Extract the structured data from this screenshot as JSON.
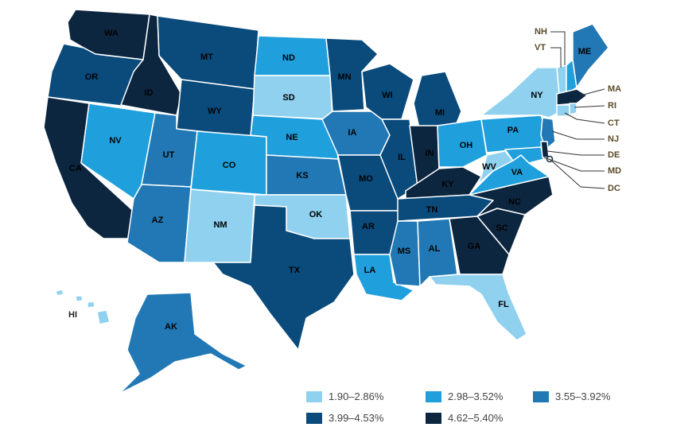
{
  "colors": {
    "c1": "#8fd1ee",
    "c2": "#1fa0dc",
    "c3": "#2178b4",
    "c4": "#0a4b7c",
    "c5": "#0d2640"
  },
  "legend": [
    {
      "label": "1.90–2.86%",
      "color": "#8fd1ee"
    },
    {
      "label": "2.98–3.52%",
      "color": "#1fa0dc"
    },
    {
      "label": "3.55–3.92%",
      "color": "#2178b4"
    },
    {
      "label": "3.99–4.53%",
      "color": "#0a4b7c"
    },
    {
      "label": "4.62–5.40%",
      "color": "#0d2640"
    }
  ],
  "states": [
    {
      "abbr": "WA",
      "bin": 5
    },
    {
      "abbr": "OR",
      "bin": 4
    },
    {
      "abbr": "CA",
      "bin": 5
    },
    {
      "abbr": "ID",
      "bin": 5
    },
    {
      "abbr": "NV",
      "bin": 2
    },
    {
      "abbr": "MT",
      "bin": 4
    },
    {
      "abbr": "WY",
      "bin": 4
    },
    {
      "abbr": "UT",
      "bin": 3
    },
    {
      "abbr": "AZ",
      "bin": 3
    },
    {
      "abbr": "CO",
      "bin": 2
    },
    {
      "abbr": "NM",
      "bin": 1
    },
    {
      "abbr": "ND",
      "bin": 2
    },
    {
      "abbr": "SD",
      "bin": 1
    },
    {
      "abbr": "NE",
      "bin": 2
    },
    {
      "abbr": "KS",
      "bin": 3
    },
    {
      "abbr": "OK",
      "bin": 1
    },
    {
      "abbr": "TX",
      "bin": 4
    },
    {
      "abbr": "MN",
      "bin": 4
    },
    {
      "abbr": "IA",
      "bin": 3
    },
    {
      "abbr": "MO",
      "bin": 4
    },
    {
      "abbr": "AR",
      "bin": 4
    },
    {
      "abbr": "LA",
      "bin": 2
    },
    {
      "abbr": "WI",
      "bin": 4
    },
    {
      "abbr": "IL",
      "bin": 4
    },
    {
      "abbr": "MI",
      "bin": 4
    },
    {
      "abbr": "IN",
      "bin": 5
    },
    {
      "abbr": "OH",
      "bin": 2
    },
    {
      "abbr": "KY",
      "bin": 5
    },
    {
      "abbr": "TN",
      "bin": 4
    },
    {
      "abbr": "MS",
      "bin": 3
    },
    {
      "abbr": "AL",
      "bin": 3
    },
    {
      "abbr": "GA",
      "bin": 5
    },
    {
      "abbr": "FL",
      "bin": 1
    },
    {
      "abbr": "SC",
      "bin": 5
    },
    {
      "abbr": "NC",
      "bin": 5
    },
    {
      "abbr": "VA",
      "bin": 2
    },
    {
      "abbr": "WV",
      "bin": 1
    },
    {
      "abbr": "PA",
      "bin": 2
    },
    {
      "abbr": "NY",
      "bin": 1
    },
    {
      "abbr": "ME",
      "bin": 3
    },
    {
      "abbr": "AK",
      "bin": 3
    },
    {
      "abbr": "HI",
      "bin": 1
    },
    {
      "abbr": "NH",
      "bin": 2
    },
    {
      "abbr": "VT",
      "bin": 1
    },
    {
      "abbr": "MA",
      "bin": 5
    },
    {
      "abbr": "RI",
      "bin": 1
    },
    {
      "abbr": "CT",
      "bin": 1
    },
    {
      "abbr": "NJ",
      "bin": 3
    },
    {
      "abbr": "DE",
      "bin": 5
    },
    {
      "abbr": "MD",
      "bin": 2
    },
    {
      "abbr": "DC",
      "bin": 5
    }
  ],
  "callouts": {
    "NH": "NH",
    "VT": "VT",
    "MA": "MA",
    "RI": "RI",
    "CT": "CT",
    "NJ": "NJ",
    "DE": "DE",
    "MD": "MD",
    "DC": "DC",
    "HI": "HI"
  }
}
